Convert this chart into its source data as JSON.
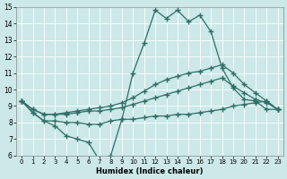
{
  "xlabel": "Humidex (Indice chaleur)",
  "x_hours": [
    0,
    1,
    2,
    3,
    4,
    5,
    6,
    7,
    8,
    9,
    10,
    11,
    12,
    13,
    14,
    15,
    16,
    17,
    18,
    19,
    20,
    21,
    22,
    23
  ],
  "line1": [
    9.3,
    8.6,
    8.1,
    7.8,
    7.2,
    7.0,
    6.8,
    5.7,
    6.0,
    8.2,
    11.0,
    12.8,
    14.8,
    14.3,
    14.8,
    14.1,
    14.5,
    13.5,
    11.3,
    10.1,
    9.4,
    9.3,
    8.8,
    8.8
  ],
  "line2": [
    9.3,
    8.6,
    8.1,
    8.1,
    8.0,
    8.0,
    7.9,
    7.9,
    8.1,
    8.2,
    8.2,
    8.3,
    8.4,
    8.4,
    8.5,
    8.5,
    8.6,
    8.7,
    8.8,
    9.0,
    9.1,
    9.2,
    9.3,
    8.8
  ],
  "line3": [
    9.3,
    8.8,
    8.5,
    8.5,
    8.5,
    8.6,
    8.7,
    8.7,
    8.8,
    8.9,
    9.1,
    9.3,
    9.5,
    9.7,
    9.9,
    10.1,
    10.3,
    10.5,
    10.7,
    10.2,
    9.8,
    9.4,
    9.2,
    8.8
  ],
  "line4": [
    9.3,
    8.8,
    8.5,
    8.5,
    8.6,
    8.7,
    8.8,
    8.9,
    9.0,
    9.2,
    9.5,
    9.9,
    10.3,
    10.6,
    10.8,
    11.0,
    11.1,
    11.3,
    11.5,
    11.0,
    10.3,
    9.8,
    9.3,
    8.8
  ],
  "line_color": "#2e6e66",
  "bg_color": "#cce8e8",
  "grid_color": "#b0d4d4",
  "ylim": [
    6,
    15
  ],
  "xlim": [
    -0.5,
    23.5
  ]
}
